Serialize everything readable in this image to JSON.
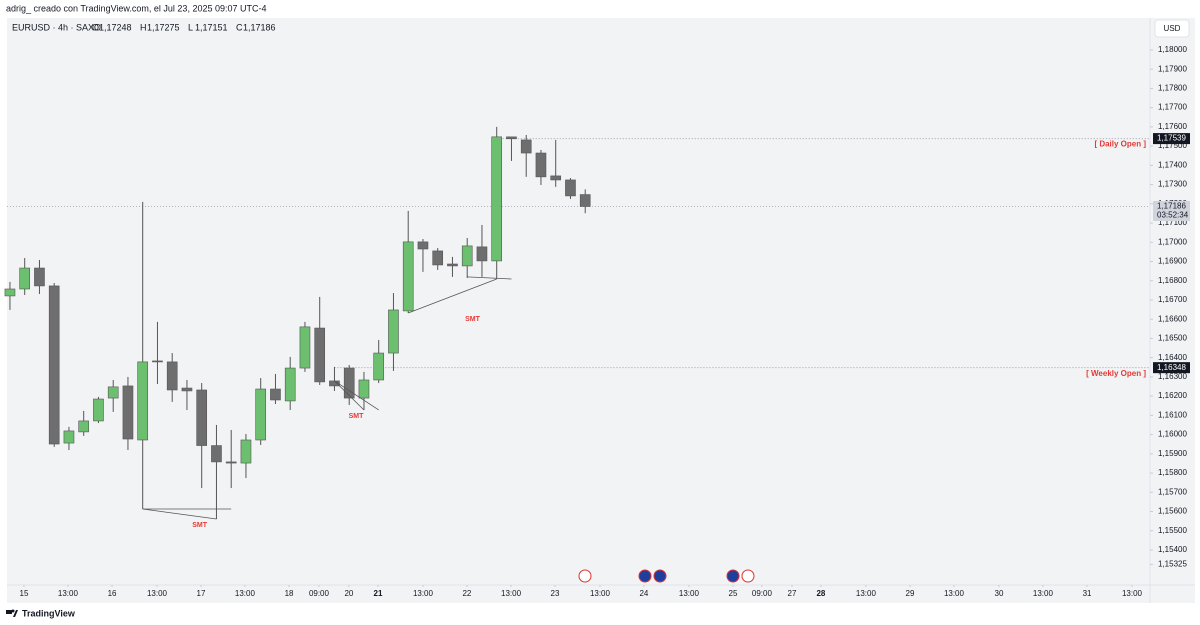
{
  "chart_data": {
    "type": "candlestick",
    "caption": "adrig_ creado con TradingView.com, el Jul 23, 2025 09:07 UTC-4",
    "symbol": "EURUSD · 4h · SAXO",
    "ohlc_header": [
      {
        "key": "O",
        "label": "1,17248"
      },
      {
        "key": "H",
        "label": "1,17275"
      },
      {
        "key": "L",
        "label": "1,17151"
      },
      {
        "key": "C",
        "label": "1,17186"
      }
    ],
    "currency": "USD",
    "brand": "TradingView",
    "up_color": "#6cbf6e",
    "down_color": "#6e6e6e",
    "open": [
      1.16721,
      1.16757,
      1.16866,
      1.16773,
      1.15956,
      1.16014,
      1.16071,
      1.1619,
      1.16253,
      1.15972,
      1.16383,
      1.16378,
      1.16242,
      1.16232,
      1.15943,
      1.15858,
      1.15852,
      1.15972,
      1.16237,
      1.16175,
      1.16346,
      1.16554,
      1.16279,
      1.16346,
      1.1619,
      1.16284,
      1.16424,
      1.16643,
      1.17002,
      1.16955,
      1.16887,
      1.16877,
      1.16976,
      1.16903,
      1.17548,
      1.17532,
      1.17464,
      1.17345,
      1.17324,
      1.17248
    ],
    "high": [
      1.16794,
      1.16918,
      1.16908,
      1.16788,
      1.1604,
      1.16123,
      1.16196,
      1.16284,
      1.163,
      1.1721,
      1.16586,
      1.16424,
      1.16284,
      1.16268,
      1.1605,
      1.16024,
      1.16003,
      1.16294,
      1.16315,
      1.16404,
      1.16586,
      1.16716,
      1.16352,
      1.16362,
      1.16326,
      1.16492,
      1.16736,
      1.17163,
      1.17017,
      1.1697,
      1.16924,
      1.17022,
      1.1709,
      1.176,
      1.17548,
      1.17558,
      1.1748,
      1.17532,
      1.17334,
      1.17275
    ],
    "low": [
      1.16648,
      1.16726,
      1.16731,
      1.15936,
      1.1592,
      1.15993,
      1.1606,
      1.16118,
      1.1592,
      1.15613,
      1.16263,
      1.1617,
      1.16128,
      1.15722,
      1.15561,
      1.15722,
      1.15774,
      1.15946,
      1.16159,
      1.16128,
      1.16326,
      1.16258,
      1.16227,
      1.16154,
      1.16128,
      1.16268,
      1.16331,
      1.16632,
      1.16846,
      1.16856,
      1.1682,
      1.16814,
      1.1682,
      1.16809,
      1.17423,
      1.1734,
      1.17298,
      1.17288,
      1.17225,
      1.17151
    ],
    "close": [
      1.16757,
      1.16866,
      1.16773,
      1.15951,
      1.16019,
      1.16071,
      1.16185,
      1.16248,
      1.15977,
      1.16378,
      1.16378,
      1.16232,
      1.16227,
      1.15943,
      1.15858,
      1.15852,
      1.15972,
      1.16237,
      1.1618,
      1.16346,
      1.1656,
      1.16274,
      1.16253,
      1.1619,
      1.16284,
      1.16424,
      1.16648,
      1.17002,
      1.16965,
      1.16882,
      1.16877,
      1.16981,
      1.16903,
      1.17548,
      1.17538,
      1.17464,
      1.1734,
      1.17324,
      1.17241,
      1.17186
    ],
    "xlim": [
      -0.2,
      77.29
    ],
    "xticks": [
      {
        "value": 0.95,
        "label": "15"
      },
      {
        "value": 3.93,
        "label": "13:00"
      },
      {
        "value": 6.92,
        "label": "16"
      },
      {
        "value": 9.97,
        "label": "13:00"
      },
      {
        "value": 12.95,
        "label": "17"
      },
      {
        "value": 15.93,
        "label": "13:00"
      },
      {
        "value": 18.92,
        "label": "18"
      },
      {
        "value": 20.95,
        "label": "09:00"
      },
      {
        "value": 22.98,
        "label": "20"
      },
      {
        "value": 24.95,
        "label": "21",
        "weight": "bold"
      },
      {
        "value": 28.0,
        "label": "13:00"
      },
      {
        "value": 30.98,
        "label": "22"
      },
      {
        "value": 33.97,
        "label": "13:00"
      },
      {
        "value": 36.95,
        "label": "23"
      },
      {
        "value": 40.0,
        "label": "13:00"
      },
      {
        "value": 42.98,
        "label": "24"
      },
      {
        "value": 46.03,
        "label": "13:00"
      },
      {
        "value": 49.02,
        "label": "25"
      },
      {
        "value": 50.98,
        "label": "09:00"
      },
      {
        "value": 53.02,
        "label": "27"
      },
      {
        "value": 54.98,
        "label": "28",
        "weight": "bold"
      },
      {
        "value": 58.03,
        "label": "13:00"
      },
      {
        "value": 61.02,
        "label": "29"
      },
      {
        "value": 64.0,
        "label": "13:00"
      },
      {
        "value": 67.05,
        "label": "30"
      },
      {
        "value": 70.03,
        "label": "13:00"
      },
      {
        "value": 73.02,
        "label": "31"
      },
      {
        "value": 76.07,
        "label": "13:00"
      }
    ],
    "ylim": [
      1.15218,
      1.18166
    ],
    "yticks": [
      {
        "value": 1.18,
        "label": "1,18000"
      },
      {
        "value": 1.179,
        "label": "1,17900"
      },
      {
        "value": 1.178,
        "label": "1,17800"
      },
      {
        "value": 1.177,
        "label": "1,17700"
      },
      {
        "value": 1.176,
        "label": "1,17600"
      },
      {
        "value": 1.175,
        "label": "1,17500"
      },
      {
        "value": 1.174,
        "label": "1,17400"
      },
      {
        "value": 1.173,
        "label": "1,17300"
      },
      {
        "value": 1.172,
        "label": "1,17200"
      },
      {
        "value": 1.171,
        "label": "1,17100"
      },
      {
        "value": 1.17,
        "label": "1,17000"
      },
      {
        "value": 1.169,
        "label": "1,16900"
      },
      {
        "value": 1.168,
        "label": "1,16800"
      },
      {
        "value": 1.167,
        "label": "1,16700"
      },
      {
        "value": 1.166,
        "label": "1,16600"
      },
      {
        "value": 1.165,
        "label": "1,16500"
      },
      {
        "value": 1.164,
        "label": "1,16400"
      },
      {
        "value": 1.163,
        "label": "1,16300"
      },
      {
        "value": 1.162,
        "label": "1,16200"
      },
      {
        "value": 1.161,
        "label": "1,16100"
      },
      {
        "value": 1.16,
        "label": "1,16000"
      },
      {
        "value": 1.159,
        "label": "1,15900"
      },
      {
        "value": 1.158,
        "label": "1,15800"
      },
      {
        "value": 1.157,
        "label": "1,15700"
      },
      {
        "value": 1.156,
        "label": "1,15600"
      },
      {
        "value": 1.155,
        "label": "1,15500"
      },
      {
        "value": 1.154,
        "label": "1,15400"
      },
      {
        "value": 1.15325,
        "label": "1,15325"
      }
    ],
    "grid": false,
    "levels": [
      {
        "name": "[ Daily Open ]",
        "value": 1.17539,
        "label": "1,17539",
        "start": 33
      },
      {
        "name": "[ Weekly Open ]",
        "value": 1.16348,
        "label": "1,16348",
        "start": 22
      }
    ],
    "last_price": {
      "value": 1.17186,
      "label": "1,17186",
      "countdown": "03:52:34"
    },
    "annotations": [
      {
        "text": "SMT",
        "line": [
          [
            9,
            1.15613
          ],
          [
            14,
            1.15561
          ]
        ],
        "level": [
          [
            9,
            1.15613
          ],
          [
            15,
            1.15613
          ]
        ]
      },
      {
        "text": "SMT",
        "line": [
          [
            22,
            1.16279
          ],
          [
            24,
            1.16128
          ]
        ],
        "level": [
          [
            22,
            1.16279
          ],
          [
            25,
            1.16128
          ]
        ]
      },
      {
        "text": "SMT",
        "line": [
          [
            27,
            1.16632
          ],
          [
            33,
            1.16809
          ]
        ],
        "level": [
          [
            31,
            1.1682
          ],
          [
            34,
            1.16809
          ]
        ]
      }
    ]
  }
}
